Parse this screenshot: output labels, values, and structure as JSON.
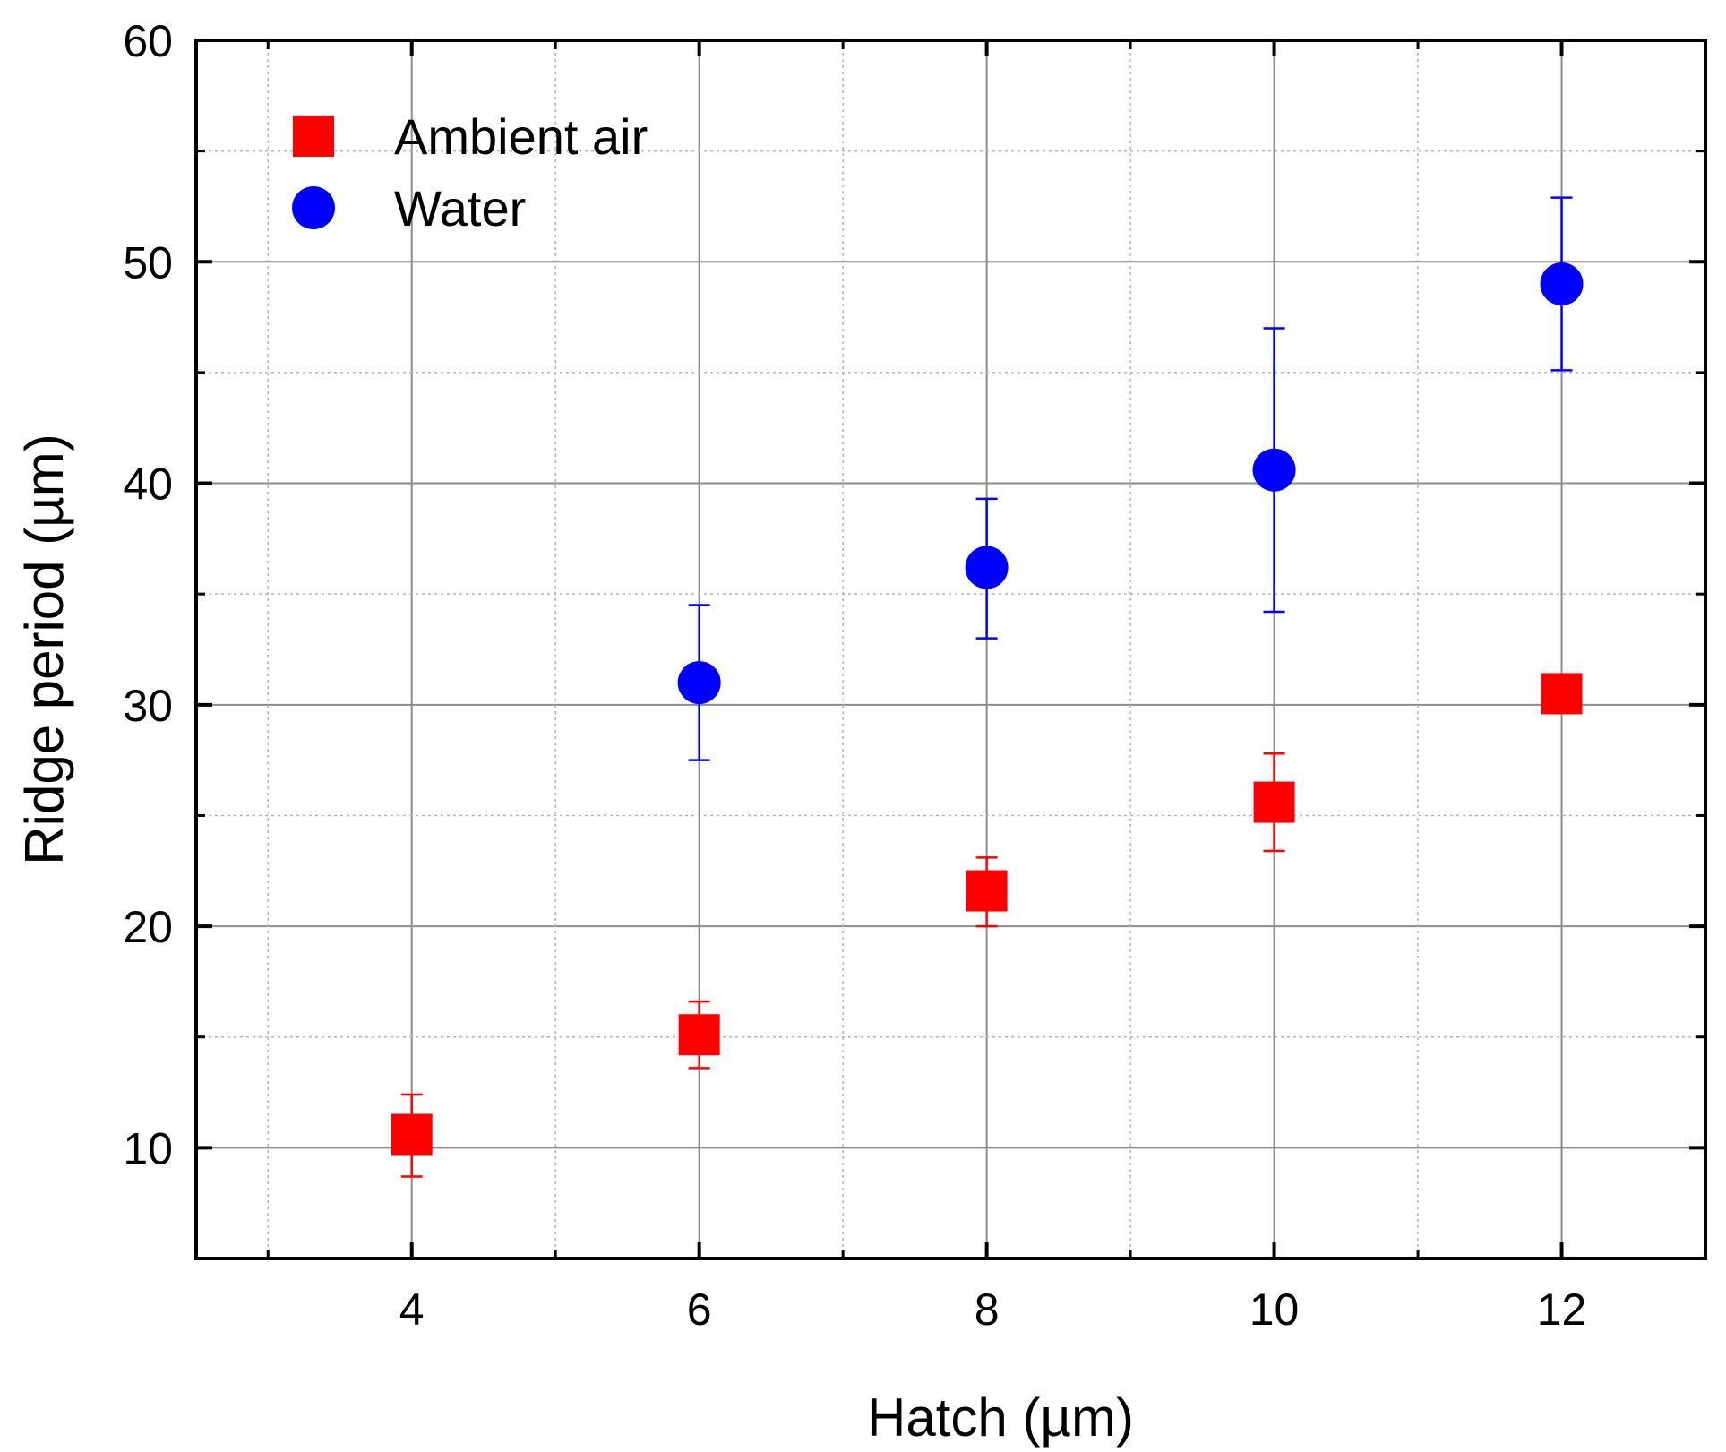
{
  "chart_data": {
    "type": "scatter",
    "title": "",
    "xlabel": "Hatch (µm)",
    "ylabel": "Ridge period (µm)",
    "xlim": [
      2.5,
      13
    ],
    "ylim": [
      5,
      60
    ],
    "xticks": [
      4,
      6,
      8,
      10,
      12
    ],
    "yticks": [
      10,
      20,
      30,
      40,
      50,
      60
    ],
    "x_minor_ticks": [
      3,
      5,
      7,
      9,
      11
    ],
    "y_minor_ticks": [
      15,
      25,
      35,
      45,
      55
    ],
    "grid": true,
    "legend_position": "top-left",
    "series": [
      {
        "name": "Ambient air",
        "marker": "square",
        "color": "#ff0000",
        "x": [
          4,
          6,
          8,
          10,
          12
        ],
        "y": [
          10.6,
          15.1,
          21.6,
          25.6,
          30.5
        ],
        "err_low": [
          8.7,
          13.6,
          20.0,
          23.4,
          null
        ],
        "err_high": [
          12.4,
          16.6,
          23.1,
          27.8,
          null
        ]
      },
      {
        "name": "Water",
        "marker": "circle",
        "color": "#0000ff",
        "x": [
          6,
          8,
          10,
          12
        ],
        "y": [
          31.0,
          36.2,
          40.6,
          49.0
        ],
        "err_low": [
          27.5,
          33.0,
          34.2,
          45.1
        ],
        "err_high": [
          34.5,
          39.3,
          47.0,
          52.9
        ]
      }
    ]
  }
}
